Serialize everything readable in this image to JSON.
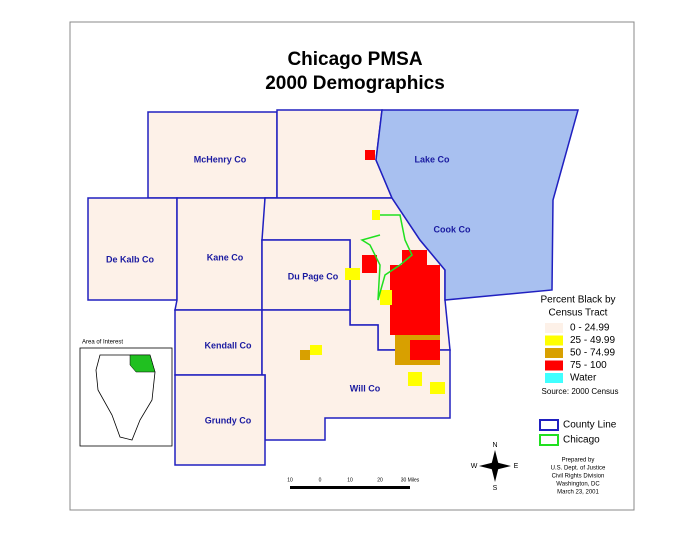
{
  "title": [
    "Chicago PMSA",
    "2000 Demographics"
  ],
  "counties": [
    "McHenry Co",
    "Lake Co",
    "Cook Co",
    "De Kalb Co",
    "Kane Co",
    "Du Page Co",
    "Kendall Co",
    "Will Co",
    "Grundy Co"
  ],
  "legend": {
    "title": [
      "Percent Black by",
      "Census Tract"
    ],
    "items": [
      {
        "label": "0 - 24.99",
        "color": "#fdf1e8"
      },
      {
        "label": "25 - 49.99",
        "color": "#ffff00"
      },
      {
        "label": "50 - 74.99",
        "color": "#d8a000"
      },
      {
        "label": "75 - 100",
        "color": "#ff0000"
      },
      {
        "label": "Water",
        "color": "#40ffff"
      }
    ],
    "source": "Source: 2000 Census",
    "lines": [
      {
        "label": "County Line",
        "color": "#2020c0"
      },
      {
        "label": "Chicago",
        "color": "#20e020"
      }
    ]
  },
  "inset": {
    "label": "Area of Interest"
  },
  "scale_bar": {
    "labels": [
      "10",
      "0",
      "10",
      "20",
      "30 Miles"
    ]
  },
  "compass": {
    "n": "N",
    "s": "S",
    "e": "E",
    "w": "W"
  },
  "credits": [
    "Prepared by",
    "U.S. Dept. of Justice",
    "Civil Rights Division",
    "Washington, DC",
    "March 23, 2001"
  ]
}
